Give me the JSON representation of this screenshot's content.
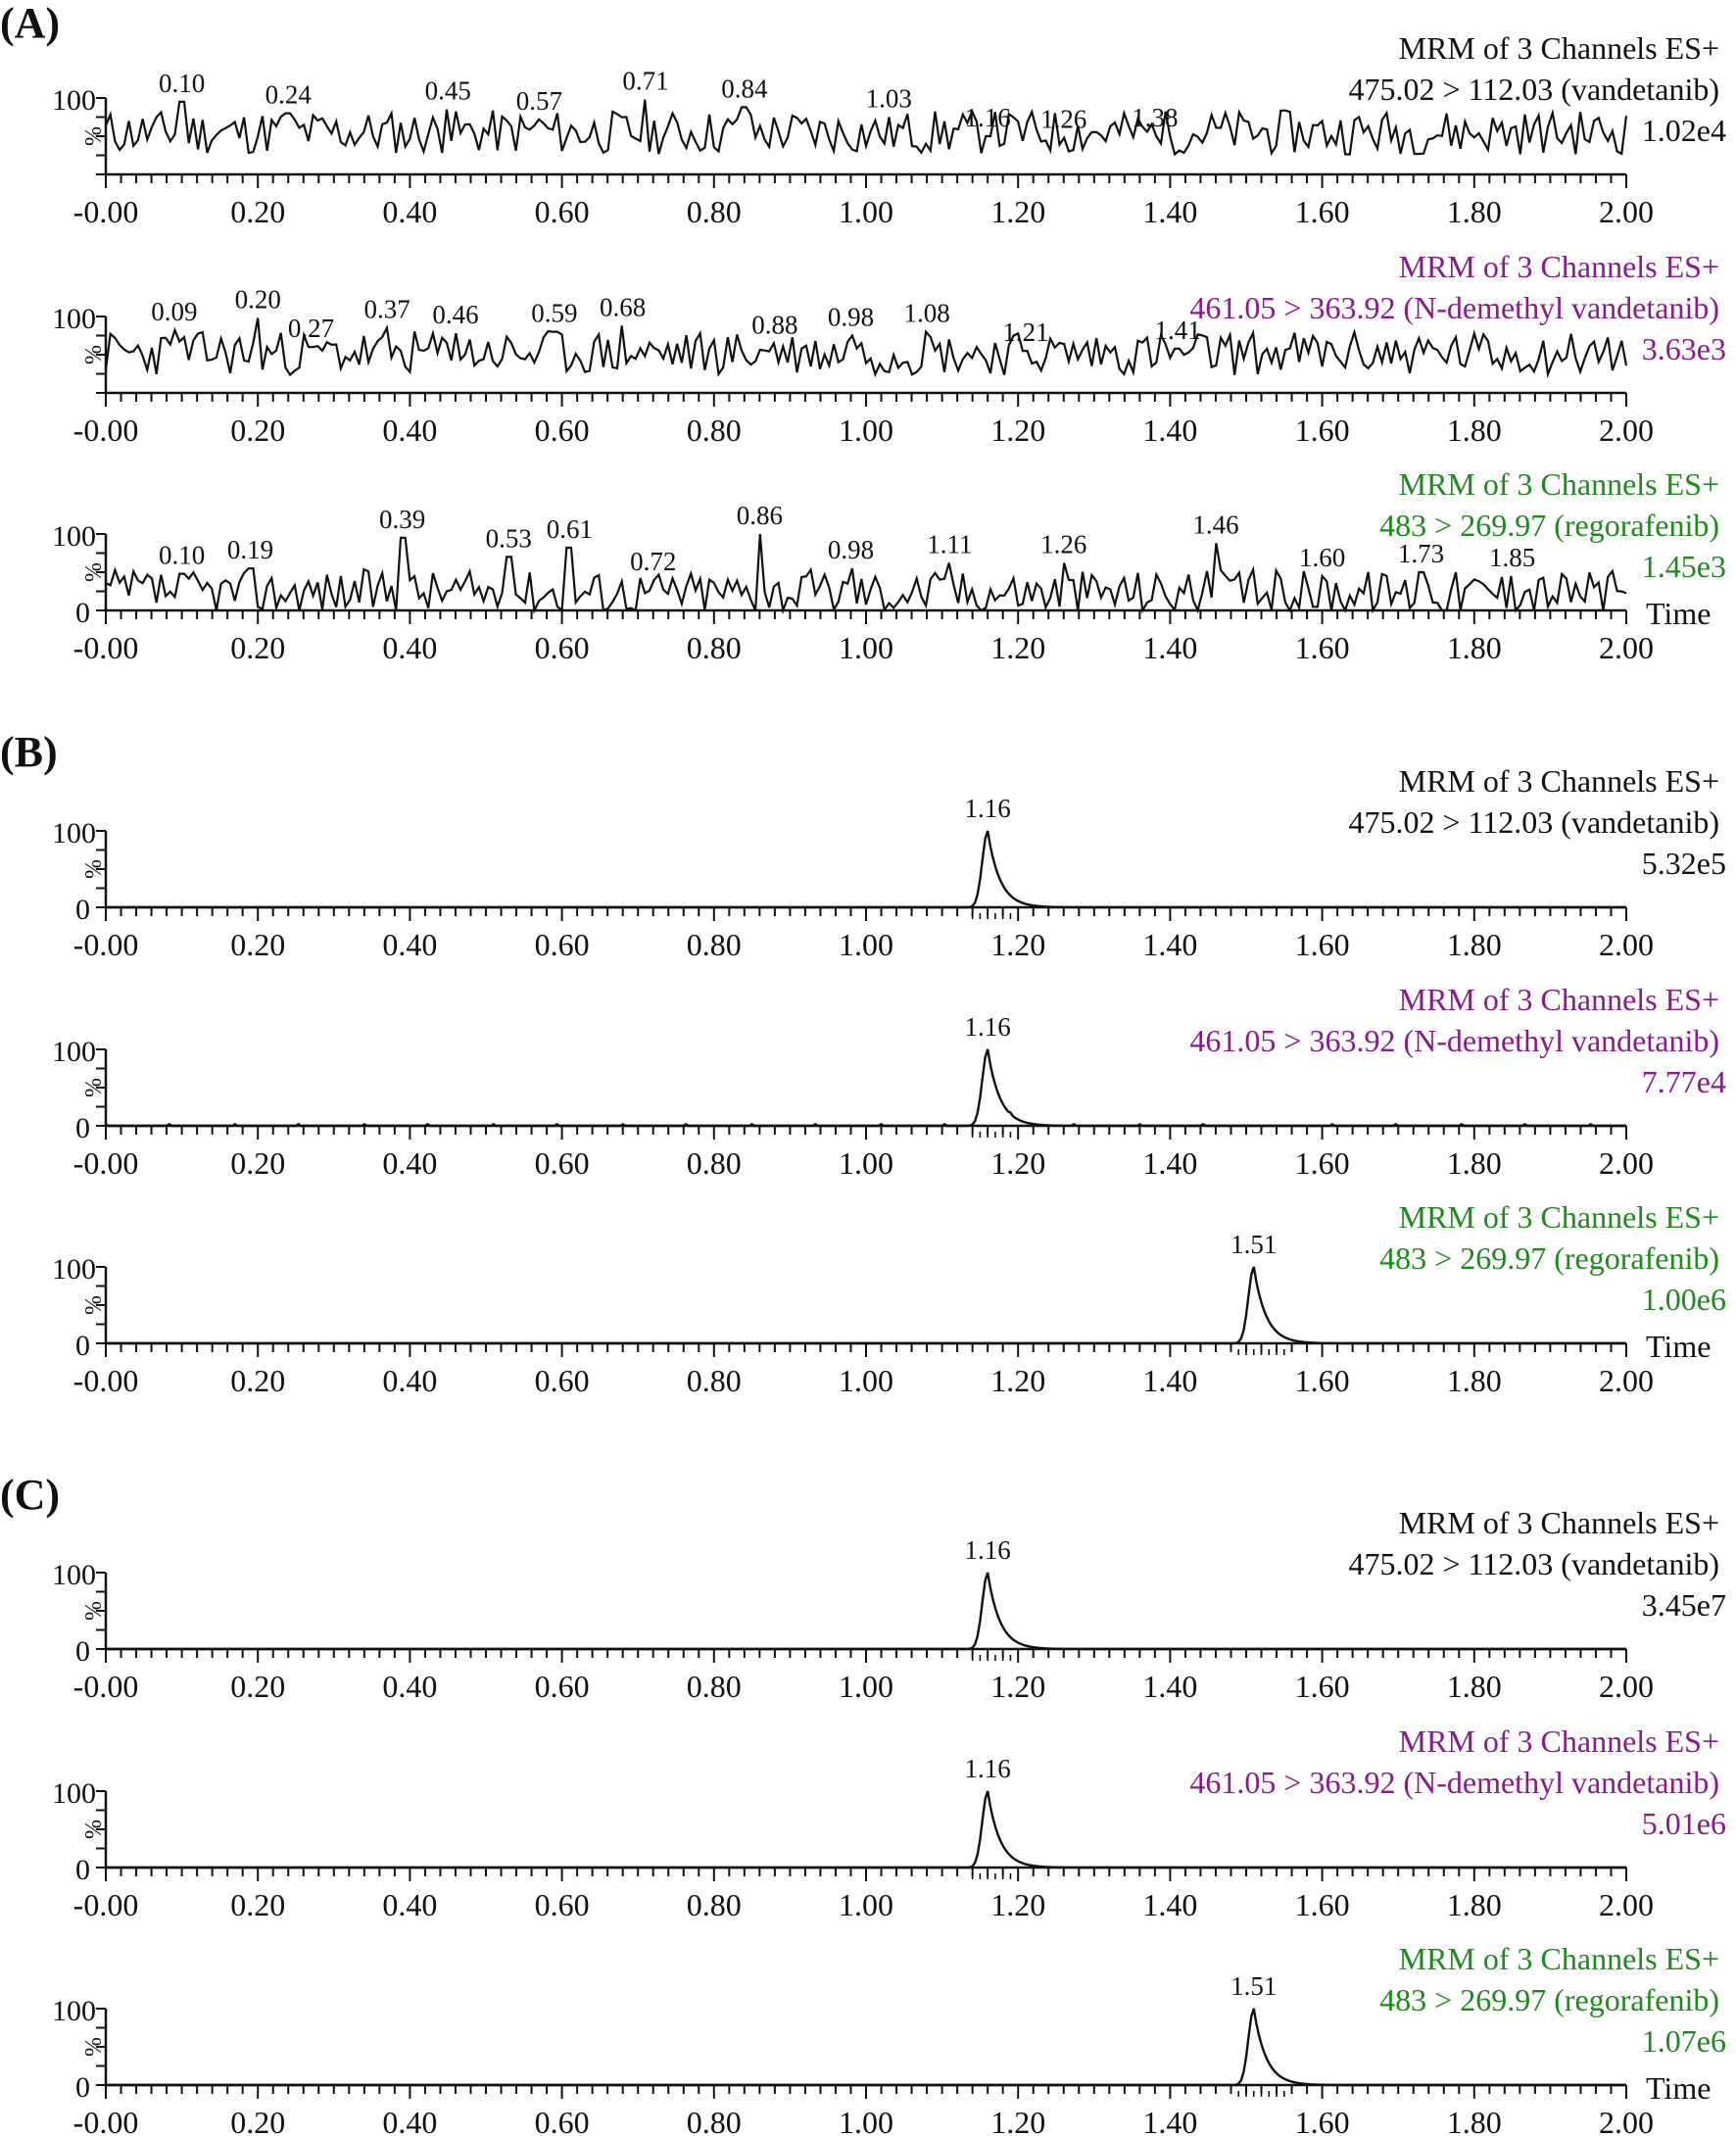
{
  "x_ticks": [
    "-0.00",
    "0.20",
    "0.40",
    "0.60",
    "0.80",
    "1.00",
    "1.20",
    "1.40",
    "1.60",
    "1.80",
    "2.00"
  ],
  "time_label": "Time",
  "y_top_label": "100",
  "y_zero_label": "0",
  "y_percent_label": "%",
  "colors": {
    "black": "#111111",
    "purple": "#8a1a8a",
    "green": "#1e8a1e"
  },
  "chart_data": [
    {
      "panel": "(A)",
      "type": "line",
      "channels": [
        {
          "title": "MRM of 3 Channels ES+",
          "transition": "475.02 > 112.03 (vandetanib)",
          "intensity": "1.02e4",
          "color": "black",
          "kind": "noise",
          "seed": 11,
          "base": 55,
          "peaks": [
            {
              "x": 0.1,
              "label": "0.10",
              "y": 95
            },
            {
              "x": 0.24,
              "label": "0.24",
              "y": 80
            },
            {
              "x": 0.45,
              "label": "0.45",
              "y": 85
            },
            {
              "x": 0.57,
              "label": "0.57",
              "y": 72
            },
            {
              "x": 0.71,
              "label": "0.71",
              "y": 98
            },
            {
              "x": 0.84,
              "label": "0.84",
              "y": 88
            },
            {
              "x": 1.03,
              "label": "1.03",
              "y": 75
            },
            {
              "x": 1.16,
              "label": "1.16",
              "y": 50
            },
            {
              "x": 1.26,
              "label": "1.26",
              "y": 48
            },
            {
              "x": 1.38,
              "label": "1.38",
              "y": 50
            }
          ]
        },
        {
          "title": "MRM of 3 Channels ES+",
          "transition": "461.05 > 363.92 (N-demethyl vandetanib)",
          "intensity": "3.63e3",
          "color": "purple",
          "kind": "noise",
          "seed": 23,
          "base": 52,
          "peaks": [
            {
              "x": 0.09,
              "label": "0.09",
              "y": 82
            },
            {
              "x": 0.2,
              "label": "0.20",
              "y": 98
            },
            {
              "x": 0.27,
              "label": "0.27",
              "y": 60
            },
            {
              "x": 0.37,
              "label": "0.37",
              "y": 85
            },
            {
              "x": 0.46,
              "label": "0.46",
              "y": 78
            },
            {
              "x": 0.59,
              "label": "0.59",
              "y": 80
            },
            {
              "x": 0.68,
              "label": "0.68",
              "y": 88
            },
            {
              "x": 0.88,
              "label": "0.88",
              "y": 65
            },
            {
              "x": 0.98,
              "label": "0.98",
              "y": 75
            },
            {
              "x": 1.08,
              "label": "1.08",
              "y": 80
            },
            {
              "x": 1.21,
              "label": "1.21",
              "y": 55
            },
            {
              "x": 1.41,
              "label": "1.41",
              "y": 58
            }
          ]
        },
        {
          "title": "MRM of 3 Channels ES+",
          "transition": "483 > 269.97 (regorafenib)",
          "intensity": "1.45e3",
          "color": "green",
          "kind": "noise",
          "seed": 37,
          "base": 25,
          "peaks": [
            {
              "x": 0.1,
              "label": "0.10",
              "y": 48
            },
            {
              "x": 0.19,
              "label": "0.19",
              "y": 55
            },
            {
              "x": 0.39,
              "label": "0.39",
              "y": 95
            },
            {
              "x": 0.53,
              "label": "0.53",
              "y": 70
            },
            {
              "x": 0.61,
              "label": "0.61",
              "y": 82
            },
            {
              "x": 0.72,
              "label": "0.72",
              "y": 40
            },
            {
              "x": 0.86,
              "label": "0.86",
              "y": 100
            },
            {
              "x": 0.98,
              "label": "0.98",
              "y": 55
            },
            {
              "x": 1.11,
              "label": "1.11",
              "y": 62
            },
            {
              "x": 1.26,
              "label": "1.26",
              "y": 62
            },
            {
              "x": 1.46,
              "label": "1.46",
              "y": 88
            },
            {
              "x": 1.6,
              "label": "1.60",
              "y": 45
            },
            {
              "x": 1.73,
              "label": "1.73",
              "y": 50
            },
            {
              "x": 1.85,
              "label": "1.85",
              "y": 45
            }
          ]
        }
      ]
    },
    {
      "panel": "(B)",
      "type": "line",
      "channels": [
        {
          "title": "MRM of 3 Channels ES+",
          "transition": "475.02 > 112.03 (vandetanib)",
          "intensity": "5.32e5",
          "color": "black",
          "kind": "peak",
          "peak_x": 1.16,
          "peak_label": "1.16"
        },
        {
          "title": "MRM of 3 Channels ES+",
          "transition": "461.05 > 363.92 (N-demethyl vandetanib)",
          "intensity": "7.77e4",
          "color": "purple",
          "kind": "peak",
          "peak_x": 1.16,
          "peak_label": "1.16"
        },
        {
          "title": "MRM of 3 Channels ES+",
          "transition": "483 > 269.97 (regorafenib)",
          "intensity": "1.00e6",
          "color": "green",
          "kind": "peak",
          "peak_x": 1.51,
          "peak_label": "1.51"
        }
      ]
    },
    {
      "panel": "(C)",
      "type": "line",
      "channels": [
        {
          "title": "MRM of 3 Channels ES+",
          "transition": "475.02 > 112.03 (vandetanib)",
          "intensity": "3.45e7",
          "color": "black",
          "kind": "peak",
          "peak_x": 1.16,
          "peak_label": "1.16"
        },
        {
          "title": "MRM of 3 Channels ES+",
          "transition": "461.05 > 363.92 (N-demethyl vandetanib)",
          "intensity": "5.01e6",
          "color": "purple",
          "kind": "peak",
          "peak_x": 1.16,
          "peak_label": "1.16"
        },
        {
          "title": "MRM of 3 Channels ES+",
          "transition": "483 > 269.97 (regorafenib)",
          "intensity": "1.07e6",
          "color": "green",
          "kind": "peak",
          "peak_x": 1.51,
          "peak_label": "1.51"
        }
      ]
    }
  ]
}
